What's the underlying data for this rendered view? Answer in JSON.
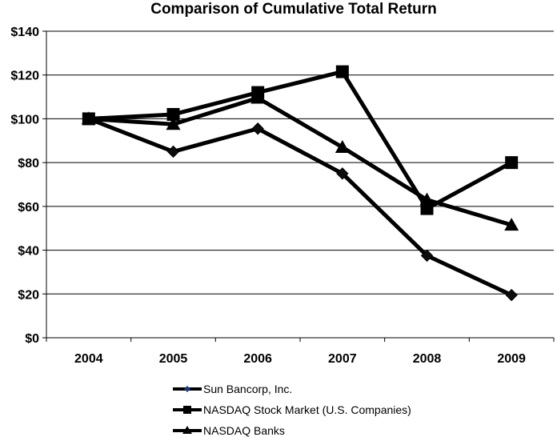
{
  "chart_data": {
    "type": "line",
    "title": "Comparison of Cumulative Total Return",
    "xlabel": "",
    "ylabel": "",
    "x": [
      "2004",
      "2005",
      "2006",
      "2007",
      "2008",
      "2009"
    ],
    "ylim": [
      0,
      140
    ],
    "yticks": [
      0,
      20,
      40,
      60,
      80,
      100,
      120,
      140
    ],
    "ytick_labels": [
      "$0",
      "$20",
      "$40",
      "$60",
      "$80",
      "$100",
      "$120",
      "$140"
    ],
    "grid": true,
    "legend_position": "bottom",
    "series": [
      {
        "name": "Sun Bancorp, Inc.",
        "marker": "diamond",
        "values": [
          100,
          85,
          95.5,
          75,
          37.5,
          19.5
        ]
      },
      {
        "name": "NASDAQ Stock Market (U.S. Companies)",
        "marker": "square",
        "values": [
          100,
          102,
          112,
          121.5,
          59,
          80
        ]
      },
      {
        "name": "NASDAQ Banks",
        "marker": "triangle",
        "values": [
          100,
          97.5,
          109.5,
          87,
          63,
          51.5
        ]
      }
    ],
    "colors": {
      "line": "#000000",
      "diamond_fill": "#0d0d0d"
    }
  }
}
